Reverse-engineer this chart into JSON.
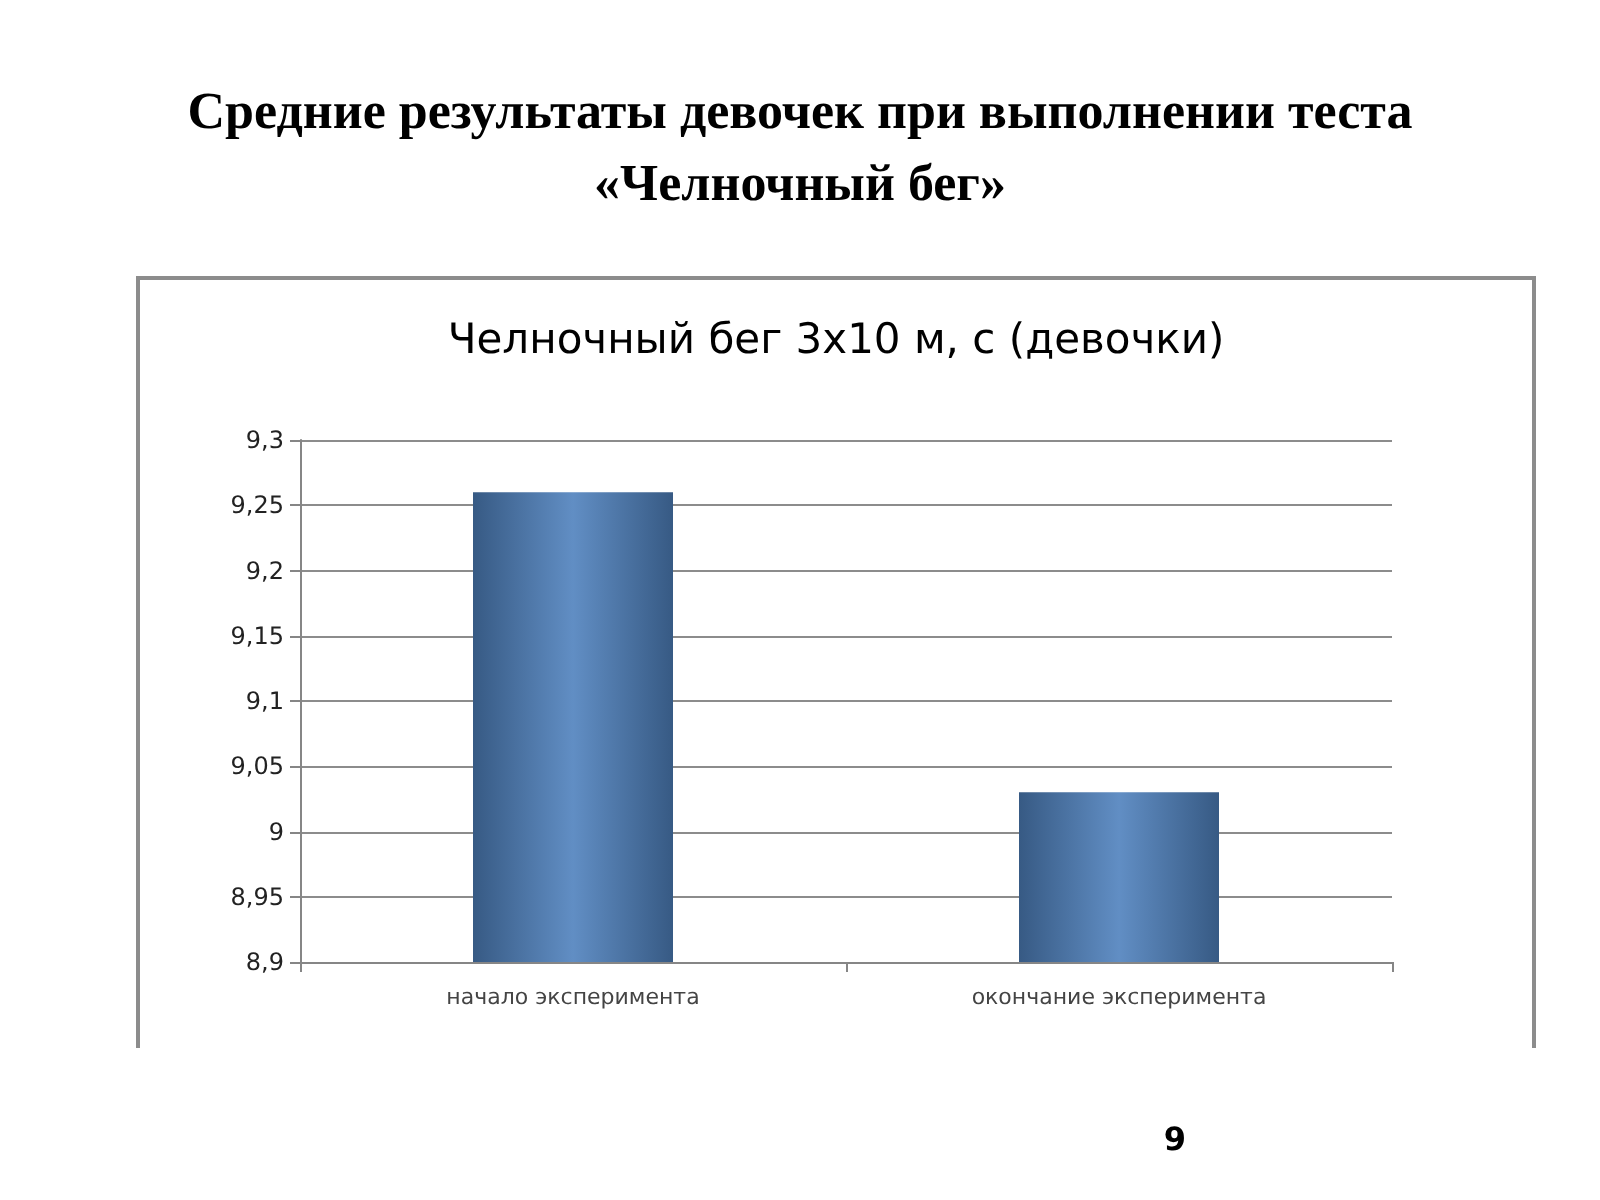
{
  "chart_data": {
    "type": "bar",
    "title": "Средние результаты девочек при выполнении теста «Челночный бег»",
    "subtitle": "Челночный бег 3х10 м, с (девочки)",
    "categories": [
      "начало эксперимента",
      "окончание эксперимента"
    ],
    "values": [
      9.26,
      9.03
    ],
    "color": "#4f81bd",
    "ylim": [
      8.9,
      9.3
    ],
    "yticks": [
      {
        "value": 8.9,
        "label": "8,9"
      },
      {
        "value": 8.95,
        "label": "8,95"
      },
      9,
      {
        "value": 9.05,
        "label": "9,05"
      },
      {
        "value": 9.1,
        "label": "9,1"
      },
      {
        "value": 9.15,
        "label": "9,15"
      },
      {
        "value": 9.2,
        "label": "9,2"
      },
      {
        "value": 9.25,
        "label": "9,25"
      },
      {
        "value": 9.3,
        "label": "9,3"
      }
    ],
    "grid": "y",
    "annotations": [
      "9"
    ]
  }
}
